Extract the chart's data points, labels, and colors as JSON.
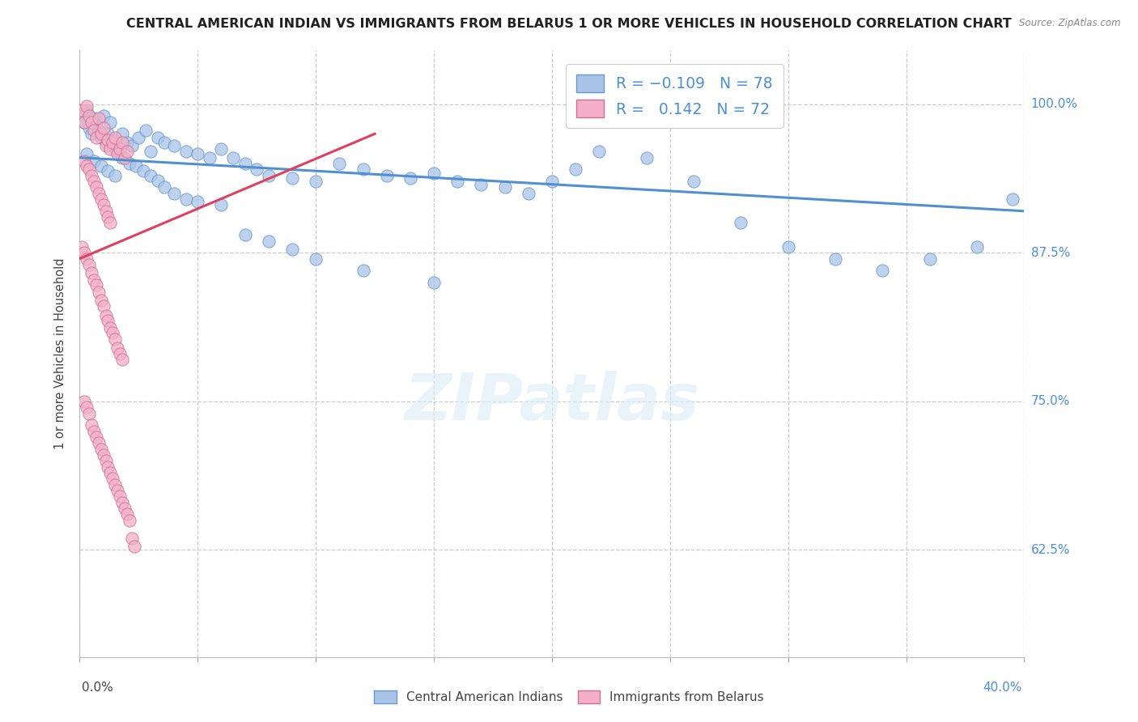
{
  "title": "CENTRAL AMERICAN INDIAN VS IMMIGRANTS FROM BELARUS 1 OR MORE VEHICLES IN HOUSEHOLD CORRELATION CHART",
  "source": "Source: ZipAtlas.com",
  "ylabel": "1 or more Vehicles in Household",
  "ylabel_values": [
    0.625,
    0.75,
    0.875,
    1.0
  ],
  "ylabel_labels": [
    "62.5%",
    "75.0%",
    "87.5%",
    "100.0%"
  ],
  "xmin": 0.0,
  "xmax": 0.4,
  "ymin": 0.535,
  "ymax": 1.045,
  "blue_color": "#aac4e8",
  "pink_color": "#f4afc8",
  "blue_line_color": "#5090d0",
  "pink_line_color": "#e04060",
  "blue_line_x0": 0.0,
  "blue_line_x1": 0.4,
  "blue_line_y0": 0.955,
  "blue_line_y1": 0.91,
  "pink_line_x0": 0.0,
  "pink_line_x1": 0.125,
  "pink_line_y0": 0.87,
  "pink_line_y1": 0.975,
  "legend_blue": "R = -0.109   N = 78",
  "legend_pink": "R =  0.142   N = 72",
  "bottom_legend_blue": "Central American Indians",
  "bottom_legend_pink": "Immigrants from Belarus",
  "blue_x": [
    0.001,
    0.002,
    0.003,
    0.004,
    0.005,
    0.006,
    0.007,
    0.008,
    0.009,
    0.01,
    0.011,
    0.012,
    0.013,
    0.014,
    0.015,
    0.016,
    0.018,
    0.02,
    0.022,
    0.025,
    0.028,
    0.03,
    0.033,
    0.036,
    0.04,
    0.045,
    0.05,
    0.055,
    0.06,
    0.065,
    0.07,
    0.075,
    0.08,
    0.09,
    0.1,
    0.11,
    0.12,
    0.13,
    0.14,
    0.15,
    0.16,
    0.17,
    0.18,
    0.19,
    0.2,
    0.21,
    0.22,
    0.24,
    0.26,
    0.28,
    0.3,
    0.32,
    0.34,
    0.36,
    0.38,
    0.395,
    0.003,
    0.006,
    0.009,
    0.012,
    0.015,
    0.018,
    0.021,
    0.024,
    0.027,
    0.03,
    0.033,
    0.036,
    0.04,
    0.045,
    0.05,
    0.06,
    0.07,
    0.08,
    0.09,
    0.1,
    0.12,
    0.15
  ],
  "blue_y": [
    0.99,
    0.985,
    0.995,
    0.98,
    0.975,
    0.988,
    0.982,
    0.978,
    0.972,
    0.99,
    0.968,
    0.975,
    0.985,
    0.965,
    0.97,
    0.96,
    0.975,
    0.968,
    0.965,
    0.972,
    0.978,
    0.96,
    0.972,
    0.968,
    0.965,
    0.96,
    0.958,
    0.955,
    0.962,
    0.955,
    0.95,
    0.945,
    0.94,
    0.938,
    0.935,
    0.95,
    0.945,
    0.94,
    0.938,
    0.942,
    0.935,
    0.932,
    0.93,
    0.925,
    0.935,
    0.945,
    0.96,
    0.955,
    0.935,
    0.9,
    0.88,
    0.87,
    0.86,
    0.87,
    0.88,
    0.92,
    0.958,
    0.952,
    0.948,
    0.944,
    0.94,
    0.955,
    0.95,
    0.948,
    0.944,
    0.94,
    0.936,
    0.93,
    0.925,
    0.92,
    0.918,
    0.915,
    0.89,
    0.885,
    0.878,
    0.87,
    0.86,
    0.85
  ],
  "pink_x": [
    0.001,
    0.002,
    0.003,
    0.004,
    0.005,
    0.006,
    0.007,
    0.008,
    0.009,
    0.01,
    0.011,
    0.012,
    0.013,
    0.014,
    0.015,
    0.016,
    0.017,
    0.018,
    0.019,
    0.02,
    0.002,
    0.003,
    0.004,
    0.005,
    0.006,
    0.007,
    0.008,
    0.009,
    0.01,
    0.011,
    0.012,
    0.013,
    0.001,
    0.002,
    0.003,
    0.004,
    0.005,
    0.006,
    0.007,
    0.008,
    0.009,
    0.01,
    0.011,
    0.012,
    0.013,
    0.014,
    0.015,
    0.016,
    0.017,
    0.018,
    0.002,
    0.003,
    0.004,
    0.005,
    0.006,
    0.007,
    0.008,
    0.009,
    0.01,
    0.011,
    0.012,
    0.013,
    0.014,
    0.015,
    0.016,
    0.017,
    0.018,
    0.019,
    0.02,
    0.021,
    0.022,
    0.023
  ],
  "pink_y": [
    0.995,
    0.985,
    0.998,
    0.99,
    0.985,
    0.978,
    0.972,
    0.988,
    0.975,
    0.98,
    0.965,
    0.97,
    0.962,
    0.968,
    0.972,
    0.958,
    0.962,
    0.968,
    0.955,
    0.96,
    0.952,
    0.948,
    0.945,
    0.94,
    0.935,
    0.93,
    0.925,
    0.92,
    0.915,
    0.91,
    0.905,
    0.9,
    0.88,
    0.875,
    0.87,
    0.865,
    0.858,
    0.852,
    0.848,
    0.842,
    0.835,
    0.83,
    0.822,
    0.818,
    0.812,
    0.808,
    0.802,
    0.795,
    0.79,
    0.785,
    0.75,
    0.745,
    0.74,
    0.73,
    0.725,
    0.72,
    0.715,
    0.71,
    0.705,
    0.7,
    0.695,
    0.69,
    0.685,
    0.68,
    0.675,
    0.67,
    0.665,
    0.66,
    0.655,
    0.65,
    0.635,
    0.628
  ]
}
